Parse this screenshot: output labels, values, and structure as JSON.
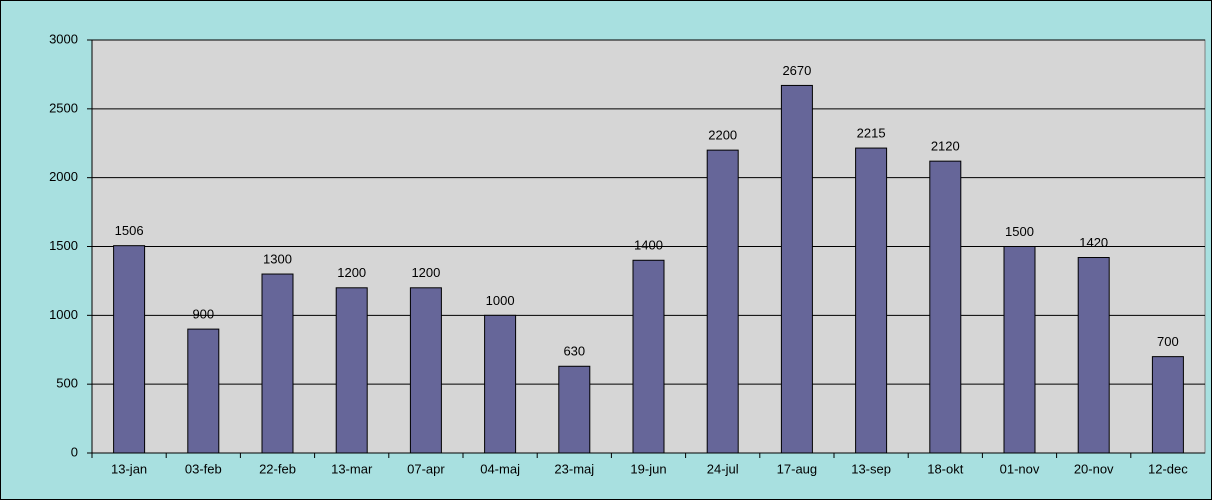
{
  "chart_data": {
    "type": "bar",
    "categories": [
      "13-jan",
      "03-feb",
      "22-feb",
      "13-mar",
      "07-apr",
      "04-maj",
      "23-maj",
      "19-jun",
      "24-jul",
      "17-aug",
      "13-sep",
      "18-okt",
      "01-nov",
      "20-nov",
      "12-dec"
    ],
    "values": [
      1506,
      900,
      1300,
      1200,
      1200,
      1000,
      630,
      1400,
      2200,
      2670,
      2215,
      2120,
      1500,
      1420,
      700
    ],
    "color": "#666699",
    "ylim": [
      0,
      3000
    ],
    "yticks": [
      0,
      500,
      1000,
      1500,
      2000,
      2500,
      3000
    ],
    "grid": true
  }
}
